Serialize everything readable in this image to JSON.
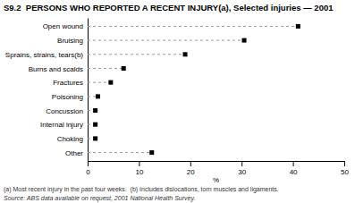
{
  "chart_data": {
    "type": "lollipop",
    "orientation": "horizontal",
    "title": "S9.2  PERSONS WHO REPORTED A RECENT INJURY(a), Selected injuries — 2001",
    "categories": [
      "Open wound",
      "Bruising",
      "Sprains, strains, tears(b)",
      "Burns and scalds",
      "Fractures",
      "Poisoning",
      "Concussion",
      "Internal injury",
      "Choking",
      "Other"
    ],
    "values": [
      41.0,
      30.5,
      19.0,
      7.0,
      4.5,
      2.0,
      1.5,
      1.5,
      1.5,
      12.5
    ],
    "color": "#000000",
    "marker": "square",
    "line_style": "dashed",
    "xlabel": "%",
    "xlim": [
      0,
      50
    ],
    "xticks": [
      0,
      10,
      20,
      30,
      40,
      50
    ],
    "grid": false,
    "footnotes": [
      "(a) Most recent injury in the past four weeks.  (b) Includes dislocations, torn muscles and ligaments.",
      "Source: ABS data available on request, 2001 National Health Survey."
    ]
  }
}
